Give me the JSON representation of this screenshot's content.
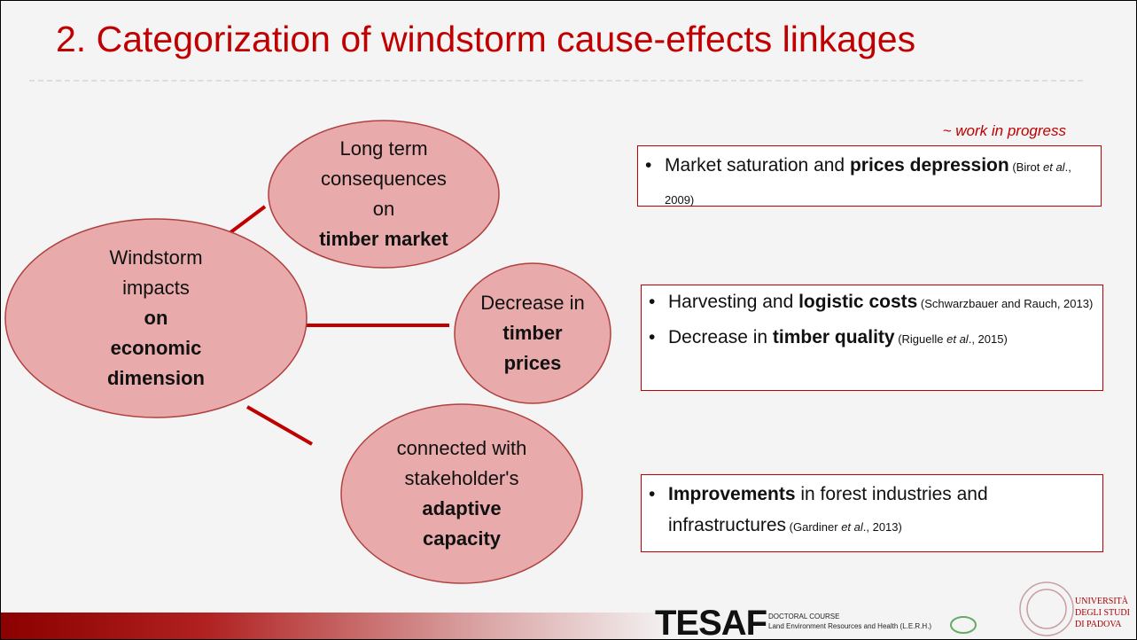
{
  "title": "2. Categorization of windstorm cause-effects linkages",
  "note": "~ work in progress",
  "nodes": [
    {
      "lines": [
        {
          "text": "Windstorm",
          "bold": false
        },
        {
          "text": "impacts",
          "bold": false
        },
        {
          "text": "on",
          "bold": true
        },
        {
          "text": "economic",
          "bold": true
        },
        {
          "text": "dimension",
          "bold": true
        }
      ]
    },
    {
      "lines": [
        {
          "text": "Long term",
          "bold": false
        },
        {
          "text": "consequences",
          "bold": false
        },
        {
          "text": "on",
          "bold": false
        },
        {
          "text": "timber market",
          "bold": true
        }
      ]
    },
    {
      "lines": [
        {
          "text": "Decrease in",
          "bold": false
        },
        {
          "text": "timber",
          "bold": true
        },
        {
          "text": "prices",
          "bold": true
        }
      ]
    },
    {
      "lines": [
        {
          "text": "connected with",
          "bold": false
        },
        {
          "text": "stakeholder's",
          "bold": false
        },
        {
          "text": "adaptive",
          "bold": true
        },
        {
          "text": "capacity",
          "bold": true
        }
      ]
    }
  ],
  "boxes": [
    {
      "items": [
        [
          {
            "text": "Market saturation and ",
            "style": "normal"
          },
          {
            "text": "prices depression",
            "style": "bold"
          },
          {
            "text": " (Birot ",
            "style": "small"
          },
          {
            "text": "et al",
            "style": "small-italic"
          },
          {
            "text": "., 2009)",
            "style": "small"
          }
        ]
      ]
    },
    {
      "items": [
        [
          {
            "text": "Harvesting and ",
            "style": "normal"
          },
          {
            "text": "logistic costs",
            "style": "bold"
          },
          {
            "text": " (Schwarzbauer and Rauch, 2013)",
            "style": "small"
          }
        ],
        [
          {
            "text": "Decrease in ",
            "style": "normal"
          },
          {
            "text": "timber quality",
            "style": "bold"
          },
          {
            "text": " (Riguelle ",
            "style": "small"
          },
          {
            "text": "et al",
            "style": "small-italic"
          },
          {
            "text": "., 2015)",
            "style": "small"
          }
        ]
      ]
    },
    {
      "items": [
        [
          {
            "text": "Improvements",
            "style": "bold"
          },
          {
            "text": " in forest industries and infrastructures",
            "style": "normal"
          },
          {
            "text": " (Gardiner ",
            "style": "small"
          },
          {
            "text": "et al",
            "style": "small-italic"
          },
          {
            "text": "., 2013)",
            "style": "small"
          }
        ]
      ]
    }
  ],
  "footer": {
    "logo": "TESAF",
    "course": "DOCTORAL COURSE",
    "course_name": "Land Environment Resources and Health (L.E.R.H.)",
    "university": [
      "UNIVERSITÀ",
      "DEGLI STUDI",
      "DI PADOVA"
    ]
  }
}
